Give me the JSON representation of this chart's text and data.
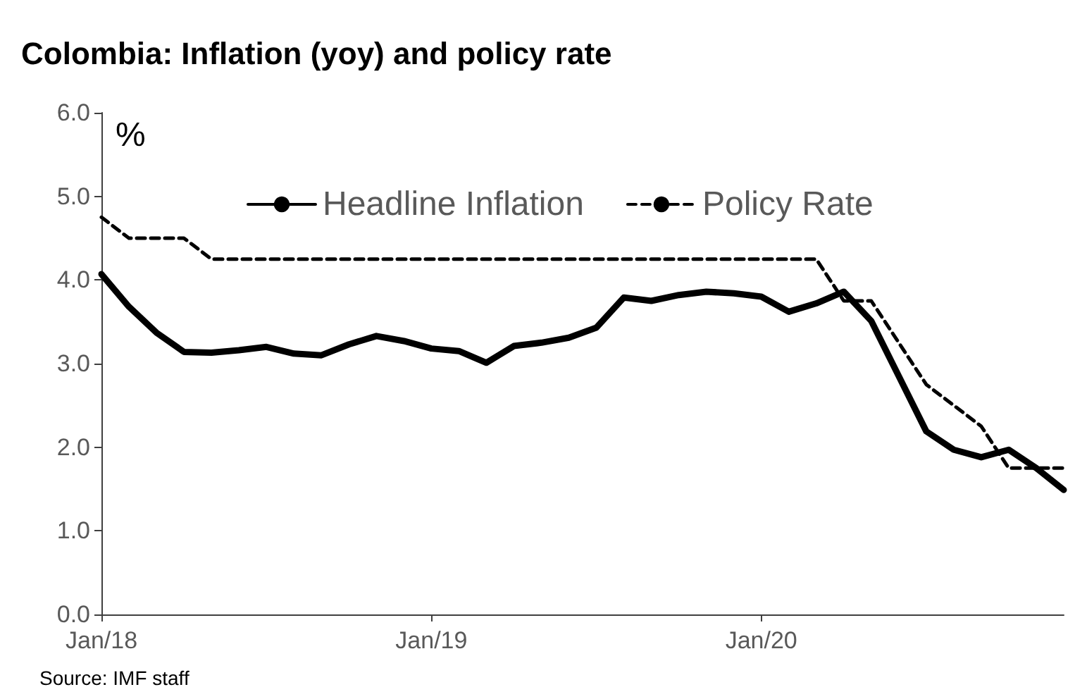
{
  "chart_data": {
    "type": "line",
    "title": "Colombia: Inflation (yoy) and policy rate",
    "ylabel": "%",
    "categories": [
      "Jan/18",
      null,
      null,
      null,
      null,
      null,
      null,
      null,
      null,
      null,
      null,
      null,
      "Jan/19",
      null,
      null,
      null,
      null,
      null,
      null,
      null,
      null,
      null,
      null,
      null,
      "Jan/20",
      null,
      null,
      null,
      null,
      null,
      null,
      null,
      null,
      null,
      null,
      null
    ],
    "series": [
      {
        "name": "Headline Inflation",
        "color": "#000000",
        "line_style": "solid",
        "values": [
          4.07,
          3.68,
          3.37,
          3.14,
          3.13,
          3.16,
          3.2,
          3.12,
          3.1,
          3.23,
          3.33,
          3.27,
          3.18,
          3.15,
          3.01,
          3.21,
          3.25,
          3.31,
          3.43,
          3.79,
          3.75,
          3.82,
          3.86,
          3.84,
          3.8,
          3.62,
          3.72,
          3.86,
          3.51,
          2.85,
          2.19,
          1.97,
          1.88,
          1.97,
          1.75,
          1.49
        ]
      },
      {
        "name": "Policy Rate",
        "color": "#000000",
        "line_style": "dashed",
        "values": [
          4.75,
          4.5,
          4.5,
          4.5,
          4.25,
          4.25,
          4.25,
          4.25,
          4.25,
          4.25,
          4.25,
          4.25,
          4.25,
          4.25,
          4.25,
          4.25,
          4.25,
          4.25,
          4.25,
          4.25,
          4.25,
          4.25,
          4.25,
          4.25,
          4.25,
          4.25,
          4.25,
          3.75,
          3.75,
          3.25,
          2.75,
          2.5,
          2.25,
          1.75,
          1.75,
          1.75
        ]
      }
    ],
    "ylim": [
      0,
      6
    ],
    "yticks": [
      {
        "value": 0,
        "label": "0.0"
      },
      {
        "value": 1,
        "label": "1.0"
      },
      {
        "value": 2,
        "label": "2.0"
      },
      {
        "value": 3,
        "label": "3.0"
      },
      {
        "value": 4,
        "label": "4.0"
      },
      {
        "value": 5,
        "label": "5.0"
      },
      {
        "value": 6,
        "label": "6.0"
      }
    ],
    "grid": false,
    "legend": "top",
    "marker": "none",
    "annotations": [
      "Source: IMF staff"
    ]
  }
}
